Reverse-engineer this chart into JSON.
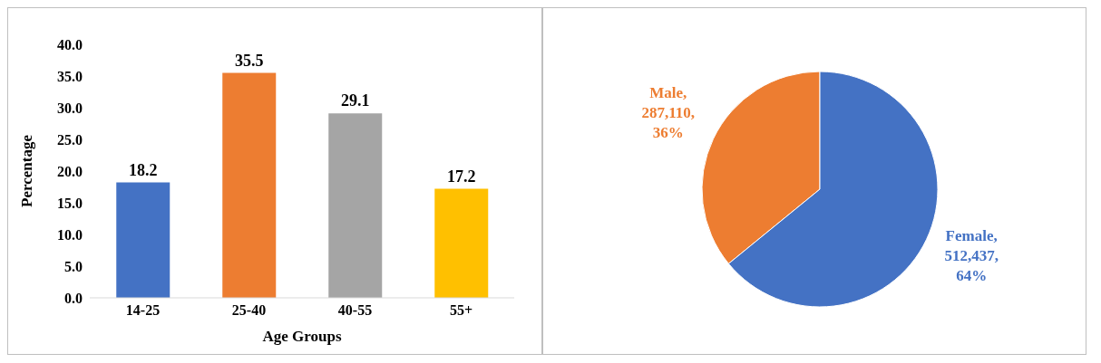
{
  "chart_data": [
    {
      "type": "bar",
      "xlabel": "Age Groups",
      "ylabel": "Percentage",
      "categories": [
        "14-25",
        "25-40",
        "40-55",
        "55+"
      ],
      "values": [
        18.2,
        35.5,
        29.1,
        17.2
      ],
      "colors": [
        "#4472c4",
        "#ed7d31",
        "#a5a5a5",
        "#ffc000"
      ],
      "ylim": [
        0,
        40
      ],
      "yticks": [
        {
          "value": 0,
          "label": "0.0"
        },
        {
          "value": 5,
          "label": "5.0"
        },
        {
          "value": 10,
          "label": "10.0"
        },
        {
          "value": 15,
          "label": "15.0"
        },
        {
          "value": 20,
          "label": "20.0"
        },
        {
          "value": 25,
          "label": "25.0"
        },
        {
          "value": 30,
          "label": "30.0"
        },
        {
          "value": 35,
          "label": "35.0"
        },
        {
          "value": 40,
          "label": "40.0"
        }
      ],
      "data_labels": true,
      "grid": false,
      "legend": false
    },
    {
      "type": "pie",
      "categories": [
        "Male",
        "Female"
      ],
      "values": [
        287110,
        512437
      ],
      "value_labels": [
        ", 287,110, 36%",
        ", 512,437, 64%"
      ],
      "colors": [
        "#ed7d31",
        "#4472c4"
      ],
      "legend": false
    }
  ]
}
